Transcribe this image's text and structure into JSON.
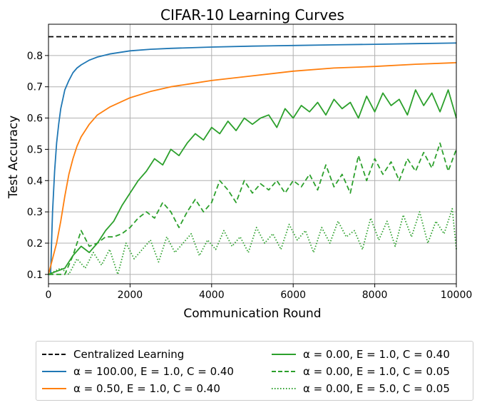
{
  "chart_data": {
    "type": "line",
    "title": "CIFAR-10 Learning Curves",
    "xlabel": "Communication Round",
    "ylabel": "Test Accuracy",
    "xlim": [
      0,
      10000
    ],
    "ylim": [
      0.07,
      0.9
    ],
    "xticks": [
      0,
      2000,
      4000,
      6000,
      8000,
      10000
    ],
    "yticks": [
      0.1,
      0.2,
      0.3,
      0.4,
      0.5,
      0.6,
      0.7,
      0.8
    ],
    "grid": true,
    "legend_position": "below-plot",
    "series": [
      {
        "name": "Centralized Learning",
        "color": "#000000",
        "dash": "dashed",
        "x": [
          0,
          10000
        ],
        "y": [
          0.86,
          0.86
        ]
      },
      {
        "name": "α = 100.00, E = 1.0, C = 0.40",
        "color": "#1f77b4",
        "dash": "solid",
        "x": [
          0,
          50,
          100,
          150,
          200,
          250,
          300,
          400,
          500,
          600,
          700,
          800,
          1000,
          1200,
          1500,
          2000,
          2500,
          3000,
          4000,
          5000,
          6000,
          7000,
          8000,
          9000,
          10000
        ],
        "y": [
          0.1,
          0.1,
          0.3,
          0.43,
          0.52,
          0.58,
          0.63,
          0.69,
          0.72,
          0.745,
          0.76,
          0.77,
          0.785,
          0.795,
          0.805,
          0.815,
          0.82,
          0.823,
          0.827,
          0.83,
          0.832,
          0.834,
          0.836,
          0.838,
          0.84
        ]
      },
      {
        "name": "α = 0.50, E = 1.0, C = 0.40",
        "color": "#ff7f0e",
        "dash": "solid",
        "x": [
          0,
          100,
          200,
          300,
          400,
          500,
          600,
          700,
          800,
          900,
          1000,
          1200,
          1500,
          2000,
          2500,
          3000,
          3500,
          4000,
          5000,
          6000,
          7000,
          8000,
          9000,
          10000
        ],
        "y": [
          0.1,
          0.15,
          0.2,
          0.27,
          0.35,
          0.42,
          0.47,
          0.51,
          0.54,
          0.56,
          0.58,
          0.61,
          0.635,
          0.665,
          0.685,
          0.7,
          0.71,
          0.72,
          0.735,
          0.75,
          0.76,
          0.765,
          0.772,
          0.777
        ]
      },
      {
        "name": "α = 0.00, E = 1.0, C = 0.40",
        "color": "#2ca02c",
        "dash": "solid",
        "x": [
          0,
          400,
          600,
          800,
          1000,
          1200,
          1400,
          1600,
          1800,
          2000,
          2200,
          2400,
          2600,
          2800,
          3000,
          3200,
          3400,
          3600,
          3800,
          4000,
          4200,
          4400,
          4600,
          4800,
          5000,
          5200,
          5400,
          5600,
          5800,
          6000,
          6200,
          6400,
          6600,
          6800,
          7000,
          7200,
          7400,
          7600,
          7800,
          8000,
          8200,
          8400,
          8600,
          8800,
          9000,
          9200,
          9400,
          9600,
          9800,
          10000
        ],
        "y": [
          0.1,
          0.12,
          0.16,
          0.19,
          0.17,
          0.2,
          0.24,
          0.27,
          0.32,
          0.36,
          0.4,
          0.43,
          0.47,
          0.45,
          0.5,
          0.48,
          0.52,
          0.55,
          0.53,
          0.57,
          0.55,
          0.59,
          0.56,
          0.6,
          0.58,
          0.6,
          0.61,
          0.57,
          0.63,
          0.6,
          0.64,
          0.62,
          0.65,
          0.61,
          0.66,
          0.63,
          0.65,
          0.6,
          0.67,
          0.62,
          0.68,
          0.64,
          0.66,
          0.61,
          0.69,
          0.64,
          0.68,
          0.62,
          0.69,
          0.6
        ]
      },
      {
        "name": "α = 0.00, E = 1.0, C = 0.05",
        "color": "#2ca02c",
        "dash": "dashed",
        "x": [
          0,
          400,
          600,
          800,
          1000,
          1200,
          1400,
          1600,
          1800,
          2000,
          2200,
          2400,
          2600,
          2800,
          3000,
          3200,
          3400,
          3600,
          3800,
          4000,
          4200,
          4400,
          4600,
          4800,
          5000,
          5200,
          5400,
          5600,
          5800,
          6000,
          6200,
          6400,
          6600,
          6800,
          7000,
          7200,
          7400,
          7600,
          7800,
          8000,
          8200,
          8400,
          8600,
          8800,
          9000,
          9200,
          9400,
          9600,
          9800,
          10000
        ],
        "y": [
          0.1,
          0.1,
          0.16,
          0.24,
          0.19,
          0.2,
          0.22,
          0.22,
          0.23,
          0.25,
          0.28,
          0.3,
          0.28,
          0.33,
          0.3,
          0.25,
          0.3,
          0.34,
          0.3,
          0.33,
          0.4,
          0.37,
          0.33,
          0.4,
          0.36,
          0.39,
          0.37,
          0.4,
          0.36,
          0.4,
          0.38,
          0.42,
          0.37,
          0.45,
          0.38,
          0.42,
          0.36,
          0.48,
          0.4,
          0.47,
          0.42,
          0.46,
          0.4,
          0.47,
          0.43,
          0.49,
          0.44,
          0.52,
          0.43,
          0.5
        ]
      },
      {
        "name": "α = 0.00, E = 5.0, C = 0.05",
        "color": "#2ca02c",
        "dash": "dotted",
        "x": [
          0,
          300,
          500,
          700,
          900,
          1100,
          1300,
          1500,
          1700,
          1900,
          2100,
          2300,
          2500,
          2700,
          2900,
          3100,
          3300,
          3500,
          3700,
          3900,
          4100,
          4300,
          4500,
          4700,
          4900,
          5100,
          5300,
          5500,
          5700,
          5900,
          6100,
          6300,
          6500,
          6700,
          6900,
          7100,
          7300,
          7500,
          7700,
          7900,
          8100,
          8300,
          8500,
          8700,
          8900,
          9100,
          9300,
          9500,
          9700,
          9900,
          10000
        ],
        "y": [
          0.1,
          0.12,
          0.1,
          0.15,
          0.12,
          0.17,
          0.13,
          0.18,
          0.1,
          0.2,
          0.15,
          0.18,
          0.21,
          0.14,
          0.22,
          0.17,
          0.2,
          0.23,
          0.16,
          0.21,
          0.18,
          0.24,
          0.19,
          0.22,
          0.17,
          0.25,
          0.2,
          0.23,
          0.18,
          0.26,
          0.21,
          0.24,
          0.17,
          0.25,
          0.2,
          0.27,
          0.22,
          0.24,
          0.18,
          0.28,
          0.21,
          0.27,
          0.19,
          0.29,
          0.22,
          0.3,
          0.2,
          0.27,
          0.23,
          0.31,
          0.18
        ]
      }
    ]
  }
}
